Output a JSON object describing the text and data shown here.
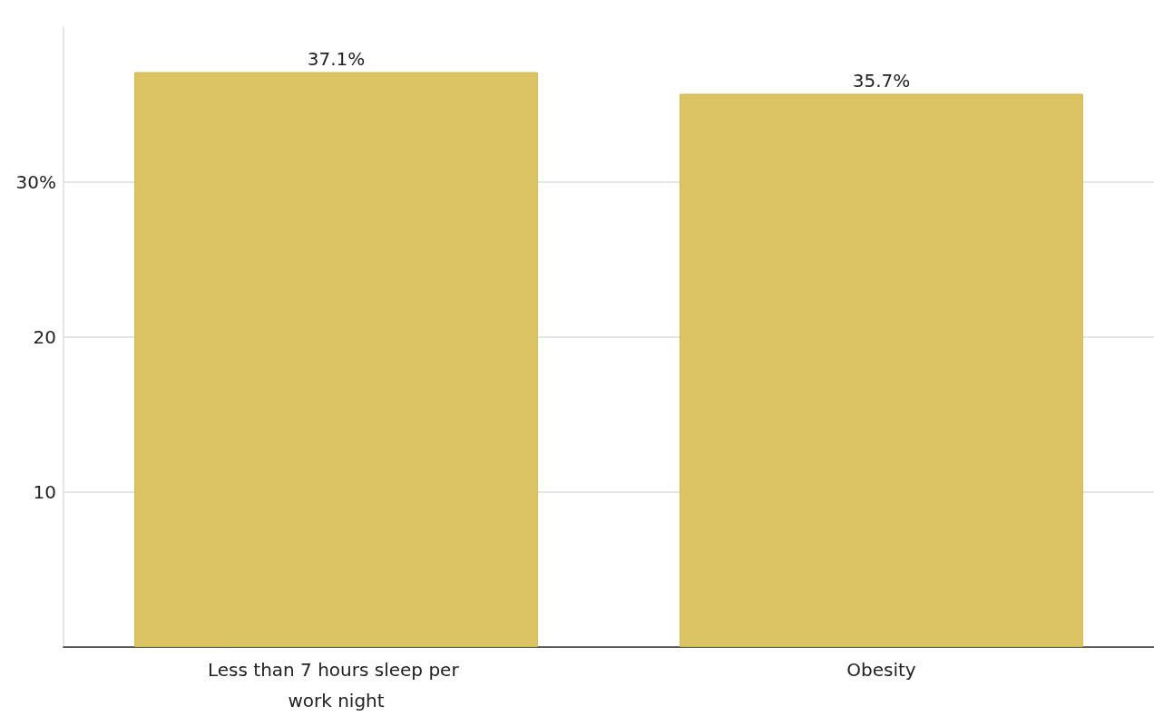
{
  "chart_data": {
    "type": "bar",
    "categories": [
      "Less than 7 hours sleep per work night",
      "Obesity"
    ],
    "values": [
      37.1,
      35.7
    ],
    "value_labels": [
      "37.1%",
      "35.7%"
    ],
    "color": "#dcc465",
    "ylim": [
      0,
      40
    ],
    "yticks": [
      10,
      20,
      {
        "value": 30,
        "label": "30%"
      }
    ],
    "grid": "y"
  }
}
